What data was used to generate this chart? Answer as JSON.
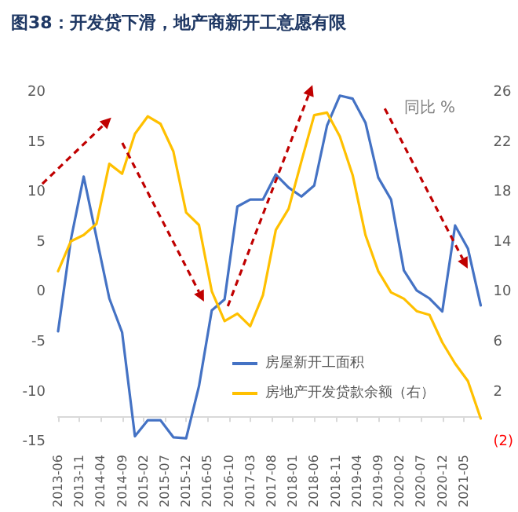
{
  "chart_data": {
    "type": "line",
    "title": "图38：开发贷下滑，地产商新开工意愿有限",
    "annotations": [
      "同比 %"
    ],
    "x": [
      "2013-06",
      "2013-09",
      "2013-12",
      "2014-03",
      "2014-06",
      "2014-09",
      "2014-12",
      "2015-03",
      "2015-06",
      "2015-09",
      "2015-12",
      "2016-03",
      "2016-06",
      "2016-09",
      "2016-12",
      "2017-03",
      "2017-06",
      "2017-09",
      "2017-12",
      "2018-03",
      "2018-06",
      "2018-09",
      "2018-12",
      "2019-03",
      "2019-06",
      "2019-09",
      "2019-12",
      "2020-03",
      "2020-06",
      "2020-09",
      "2020-12",
      "2021-03",
      "2021-06",
      "2021-09"
    ],
    "series": [
      {
        "name": "房屋新开工面积",
        "color": "#4472c4",
        "values": [
          -3.9,
          5.3,
          11.6,
          5.5,
          -0.6,
          -4.0,
          -14.4,
          -12.8,
          -12.8,
          -14.5,
          -14.6,
          -9.4,
          -1.8,
          -0.7,
          8.6,
          9.3,
          9.3,
          11.8,
          10.5,
          9.6,
          10.7,
          16.7,
          19.7,
          19.4,
          17.0,
          11.5,
          9.3,
          2.2,
          0.2,
          -0.6,
          -1.9,
          6.7,
          4.4,
          -1.3
        ]
      },
      {
        "name": "房地产开发贷款余额（右）",
        "color": "#ffc000",
        "axis": "y2",
        "values": [
          11.7,
          14.1,
          14.6,
          15.5,
          20.3,
          19.5,
          22.7,
          24.1,
          23.5,
          21.3,
          16.4,
          15.4,
          10.1,
          7.7,
          8.3,
          7.3,
          9.8,
          15.0,
          16.7,
          20.5,
          24.2,
          24.4,
          22.5,
          19.4,
          14.6,
          11.7,
          10.0,
          9.5,
          8.5,
          8.2,
          6.0,
          4.3,
          2.9,
          -0.1
        ]
      }
    ],
    "xlim": [
      "2013-06",
      "2021-09"
    ],
    "xticks": [
      "2013-06",
      "2013-11",
      "2014-04",
      "2014-09",
      "2015-02",
      "2015-07",
      "2015-12",
      "2016-05",
      "2016-10",
      "2017-03",
      "2017-08",
      "2018-01",
      "2018-06",
      "2018-11",
      "2019-04",
      "2019-09",
      "2020-02",
      "2020-07",
      "2020-12",
      "2021-05"
    ],
    "ylim": [
      -15,
      20
    ],
    "yticks": [
      -15,
      -10,
      -5,
      0,
      5,
      10,
      15,
      20
    ],
    "y2lim": [
      -2,
      26
    ],
    "y2ticks": [
      {
        "value": -2,
        "label": "(2)"
      },
      2,
      6,
      10,
      14,
      18,
      22,
      26
    ],
    "grid": false,
    "legend": "bottom right",
    "marker": "none",
    "line_style": "solid"
  }
}
